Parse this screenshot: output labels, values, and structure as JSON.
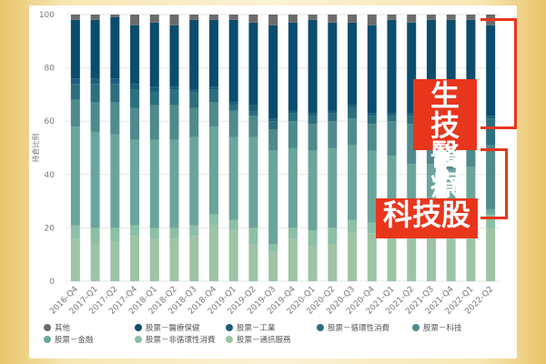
{
  "chart_data": {
    "type": "bar",
    "stacked": true,
    "ylabel": "持倉比例",
    "ylim": [
      0,
      100
    ],
    "yticks": [
      0,
      20,
      40,
      60,
      80,
      100
    ],
    "grid": true,
    "legend_position": "bottom",
    "categories": [
      "2016-Q4",
      "2017-Q1",
      "2017-Q2",
      "2017-Q4",
      "2018-Q1",
      "2018-Q2",
      "2018-Q3",
      "2018-Q4",
      "2019-Q1",
      "2019-Q2",
      "2019-Q3",
      "2019-Q4",
      "2020-Q1",
      "2020-Q2",
      "2020-Q3",
      "2020-Q4",
      "2021-Q1",
      "2021-Q2",
      "2021-Q3",
      "2021-Q4",
      "2022-Q1",
      "2022-Q2"
    ],
    "series": [
      {
        "name": "股票－通訊服務",
        "color": "#9dc4a4",
        "values": [
          16,
          14,
          15,
          17,
          16,
          16,
          17,
          21,
          19,
          14,
          11,
          16,
          13,
          14,
          18,
          18,
          18,
          18,
          18,
          17,
          17,
          20
        ]
      },
      {
        "name": "股票－非循環性消費",
        "color": "#8cbfa7",
        "values": [
          5,
          6,
          5,
          4,
          4,
          4,
          4,
          4,
          4,
          6,
          3,
          4,
          6,
          6,
          5,
          4,
          4,
          3,
          3,
          3,
          4,
          5
        ]
      },
      {
        "name": "股票－金融",
        "color": "#6aa59b",
        "values": [
          37,
          36,
          35,
          32,
          33,
          33,
          33,
          33,
          31,
          34,
          35,
          30,
          30,
          30,
          28,
          27,
          25,
          23,
          23,
          22,
          22,
          2
        ]
      },
      {
        "name": "股票－科技",
        "color": "#4f8a8d",
        "values": [
          10,
          11,
          12,
          12,
          13,
          13,
          11,
          9,
          10,
          8,
          8,
          10,
          10,
          10,
          10,
          10,
          13,
          15,
          15,
          16,
          17,
          24
        ]
      },
      {
        "name": "股票－循環性消費",
        "color": "#2c6f7e",
        "values": [
          6,
          7,
          7,
          7,
          5,
          6,
          6,
          5,
          2,
          2,
          3,
          3,
          3,
          3,
          4,
          3,
          2,
          3,
          4,
          5,
          2,
          10
        ]
      },
      {
        "name": "股票－工業",
        "color": "#1b5e7a",
        "values": [
          2,
          2,
          2,
          2,
          2,
          1,
          1,
          1,
          1,
          2,
          1,
          1,
          1,
          1,
          1,
          1,
          1,
          1,
          1,
          1,
          1,
          1
        ]
      },
      {
        "name": "股票－醫療保健",
        "color": "#0b4d6e",
        "values": [
          22,
          22,
          23,
          22,
          24,
          23,
          26,
          25,
          31,
          31,
          35,
          33,
          35,
          33,
          31,
          33,
          35,
          34,
          34,
          34,
          35,
          34
        ]
      },
      {
        "name": "其他",
        "color": "#6b6b6b",
        "values": [
          2,
          2,
          1,
          4,
          3,
          4,
          2,
          2,
          2,
          3,
          4,
          3,
          2,
          3,
          3,
          4,
          2,
          3,
          2,
          2,
          2,
          4
        ]
      }
    ]
  },
  "legend": [
    {
      "name": "其他",
      "color": "#6b6b6b"
    },
    {
      "name": "股票－醫療保健",
      "color": "#0b4d6e"
    },
    {
      "name": "股票－工業",
      "color": "#1b5e7a"
    },
    {
      "name": "股票－循環性消費",
      "color": "#2c6f7e"
    },
    {
      "name": "股票－科技",
      "color": "#4f8a8d"
    },
    {
      "name": "股票－金融",
      "color": "#6aa59b"
    },
    {
      "name": "股票－非循環性消費",
      "color": "#8cbfa7"
    },
    {
      "name": "股票－通訊服務",
      "color": "#9dc4a4"
    }
  ],
  "callouts": {
    "biotech_line1": "生技",
    "biotech_line2": "醫療",
    "tech": "科技股"
  }
}
